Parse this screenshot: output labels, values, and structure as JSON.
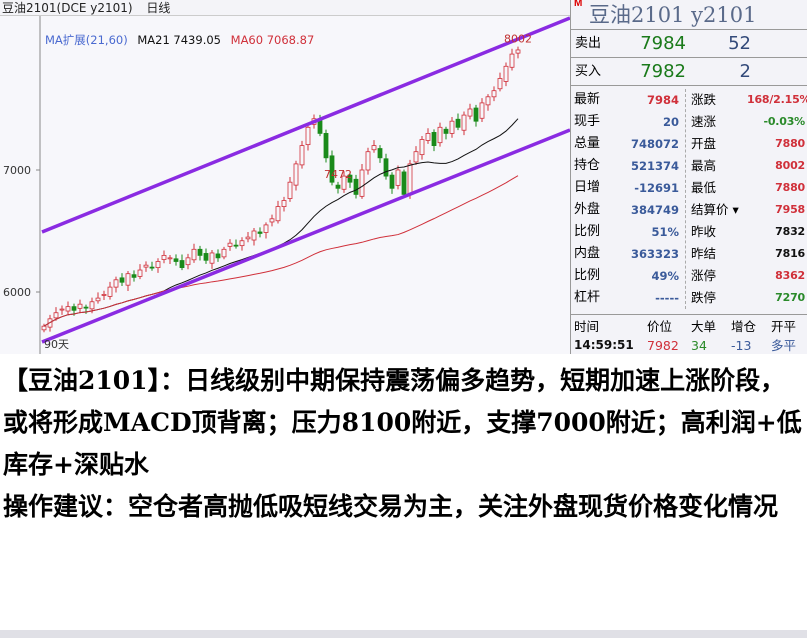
{
  "topbar": {
    "title": "豆油2101(DCE y2101)",
    "period": "日线"
  },
  "legend": {
    "ma": "MA扩展(21,60)",
    "ma21": "MA21 7439.05",
    "ma60": "MA60 7068.87"
  },
  "panel": {
    "marker": "M",
    "title": "豆油2101  y2101",
    "sell": {
      "label": "卖出",
      "price": "7984",
      "vol": "52"
    },
    "buy": {
      "label": "买入",
      "price": "7982",
      "vol": "2"
    },
    "rows": [
      {
        "l1": "最新",
        "v1": "7984",
        "c1": "red",
        "l2": "涨跌",
        "v2": "168/2.15%",
        "c2": "red"
      },
      {
        "l1": "现手",
        "v1": "20",
        "c1": "blue",
        "l2": "速涨",
        "v2": "-0.03%",
        "c2": "green"
      },
      {
        "l1": "总量",
        "v1": "748072",
        "c1": "blue",
        "l2": "开盘",
        "v2": "7880",
        "c2": "red"
      },
      {
        "l1": "持仓",
        "v1": "521374",
        "c1": "blue",
        "l2": "最高",
        "v2": "8002",
        "c2": "red"
      },
      {
        "l1": "日增",
        "v1": "-12691",
        "c1": "blue",
        "l2": "最低",
        "v2": "7880",
        "c2": "red"
      },
      {
        "l1": "外盘",
        "v1": "384749",
        "c1": "blue",
        "l2": "结算价 ▾",
        "v2": "7958",
        "c2": "red"
      },
      {
        "l1": "比例",
        "v1": "51%",
        "c1": "blue",
        "l2": "昨收",
        "v2": "7832",
        "c2": "black"
      },
      {
        "l1": "内盘",
        "v1": "363323",
        "c1": "blue",
        "l2": "昨结",
        "v2": "7816",
        "c2": "black"
      },
      {
        "l1": "比例",
        "v1": "49%",
        "c1": "blue",
        "l2": "涨停",
        "v2": "8362",
        "c2": "red"
      },
      {
        "l1": "杠杆",
        "v1": "-----",
        "c1": "blue",
        "l2": "跌停",
        "v2": "7270",
        "c2": "green"
      }
    ],
    "ticks_header": [
      "时间",
      "价位",
      "大单",
      "增仓",
      "开平"
    ],
    "ticks": [
      [
        "14:59:51",
        "7982",
        "34",
        "-13",
        "多平"
      ]
    ]
  },
  "text": [
    "【豆油2101】：日线级别中期保持震荡偏多趋势，短期加速上涨阶段，或将形成MACD顶背离；压力8100附近，支撑7000附近；高利润+低库存+深贴水",
    "操作建议：空仓者高抛低吸短线交易为主，关注外盘现货价格变化情况"
  ],
  "chart_data": {
    "type": "candlestick",
    "yticks": [
      6000,
      7000
    ],
    "ylim": [
      5566,
      8066
    ],
    "up_color": "#d0303a",
    "down_color": "#1a8a1a",
    "closes": [
      5720,
      5780,
      5830,
      5860,
      5880,
      5850,
      5900,
      5870,
      5920,
      5950,
      5980,
      6040,
      6100,
      6080,
      6150,
      6120,
      6180,
      6220,
      6200,
      6250,
      6300,
      6280,
      6250,
      6200,
      6280,
      6350,
      6300,
      6260,
      6320,
      6280,
      6350,
      6400,
      6380,
      6420,
      6450,
      6500,
      6480,
      6550,
      6600,
      6700,
      6750,
      6900,
      7050,
      7200,
      7350,
      7420,
      7300,
      7100,
      6900,
      6850,
      6950,
      6900,
      6800,
      7000,
      7150,
      7200,
      7100,
      6950,
      6850,
      7000,
      6800,
      7050,
      7150,
      7250,
      7300,
      7200,
      7350,
      7300,
      7400,
      7350,
      7450,
      7500,
      7400,
      7550,
      7600,
      7650,
      7750,
      7850,
      7950,
      7984
    ],
    "annotations": [
      {
        "text": "7472",
        "bar": 49
      },
      {
        "text": "8002",
        "bar": 79
      }
    ],
    "bottom_label": "90天",
    "ma_colors": {
      "ma21": "#111111",
      "ma60": "#d0303a"
    },
    "channel_color": "#8a2be2",
    "channel": {
      "upper": [
        [
          0,
          6492
        ],
        [
          88,
          8246
        ]
      ],
      "lower": [
        [
          0,
          5590
        ],
        [
          88,
          7328
        ]
      ]
    }
  }
}
